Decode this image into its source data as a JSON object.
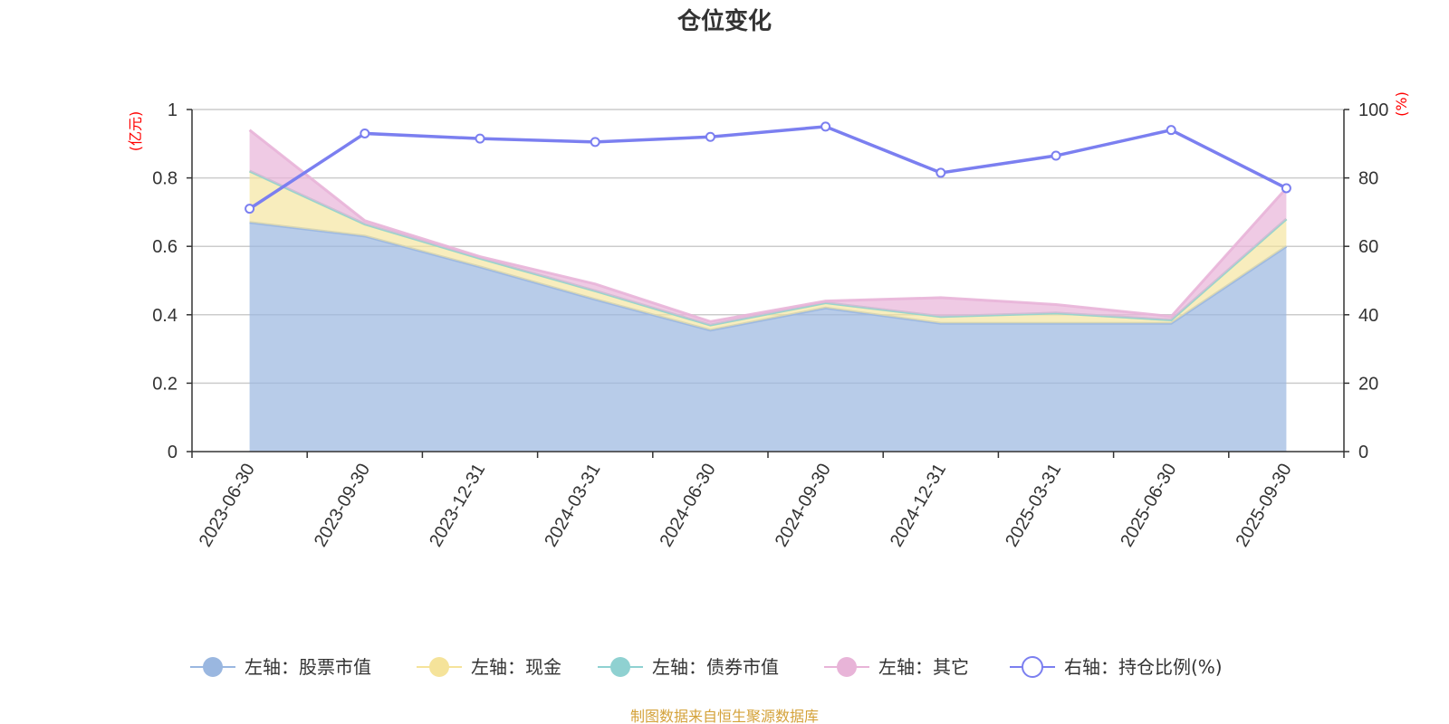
{
  "chart_data": {
    "type": "area",
    "title": "仓位变化",
    "left_axis_label": "(亿元)",
    "right_axis_label": "(%)",
    "categories": [
      "2023-06-30",
      "2023-09-30",
      "2023-12-31",
      "2024-03-31",
      "2024-06-30",
      "2024-09-30",
      "2024-12-31",
      "2025-03-31",
      "2025-06-30",
      "2025-09-30"
    ],
    "left_ylim": [
      0,
      1
    ],
    "left_ticks": [
      "0",
      "0.2",
      "0.4",
      "0.6",
      "0.8",
      "1"
    ],
    "right_ylim": [
      0,
      100
    ],
    "right_ticks": [
      "0",
      "20",
      "40",
      "60",
      "80",
      "100"
    ],
    "stacked": true,
    "series": [
      {
        "name": "左轴：股票市值",
        "axis": "left",
        "color": "#9ab7e0",
        "values": [
          0.67,
          0.63,
          0.54,
          0.445,
          0.355,
          0.42,
          0.375,
          0.375,
          0.375,
          0.6
        ]
      },
      {
        "name": "左轴：现金",
        "axis": "left",
        "color": "#f5e39a",
        "values": [
          0.15,
          0.035,
          0.025,
          0.025,
          0.015,
          0.015,
          0.02,
          0.03,
          0.01,
          0.08
        ]
      },
      {
        "name": "左轴：债券市值",
        "axis": "left",
        "color": "#8fd1d1",
        "values": [
          0,
          0,
          0,
          0,
          0,
          0,
          0,
          0,
          0,
          0
        ]
      },
      {
        "name": "左轴：其它",
        "axis": "left",
        "color": "#e8b4d8",
        "values": [
          0.12,
          0.01,
          0.005,
          0.02,
          0.01,
          0.005,
          0.055,
          0.025,
          0.01,
          0.09
        ]
      },
      {
        "name": "右轴：持仓比例(%)",
        "axis": "right",
        "color": "#7b7ff0",
        "values": [
          71,
          93,
          91.5,
          90.5,
          92,
          95,
          81.5,
          86.5,
          94,
          77
        ]
      }
    ],
    "source": "制图数据来自恒生聚源数据库"
  },
  "colors": {
    "unit_label": "#ff0000",
    "source": "#d4a23a",
    "grid": "#cccccc",
    "axis": "#333333"
  }
}
